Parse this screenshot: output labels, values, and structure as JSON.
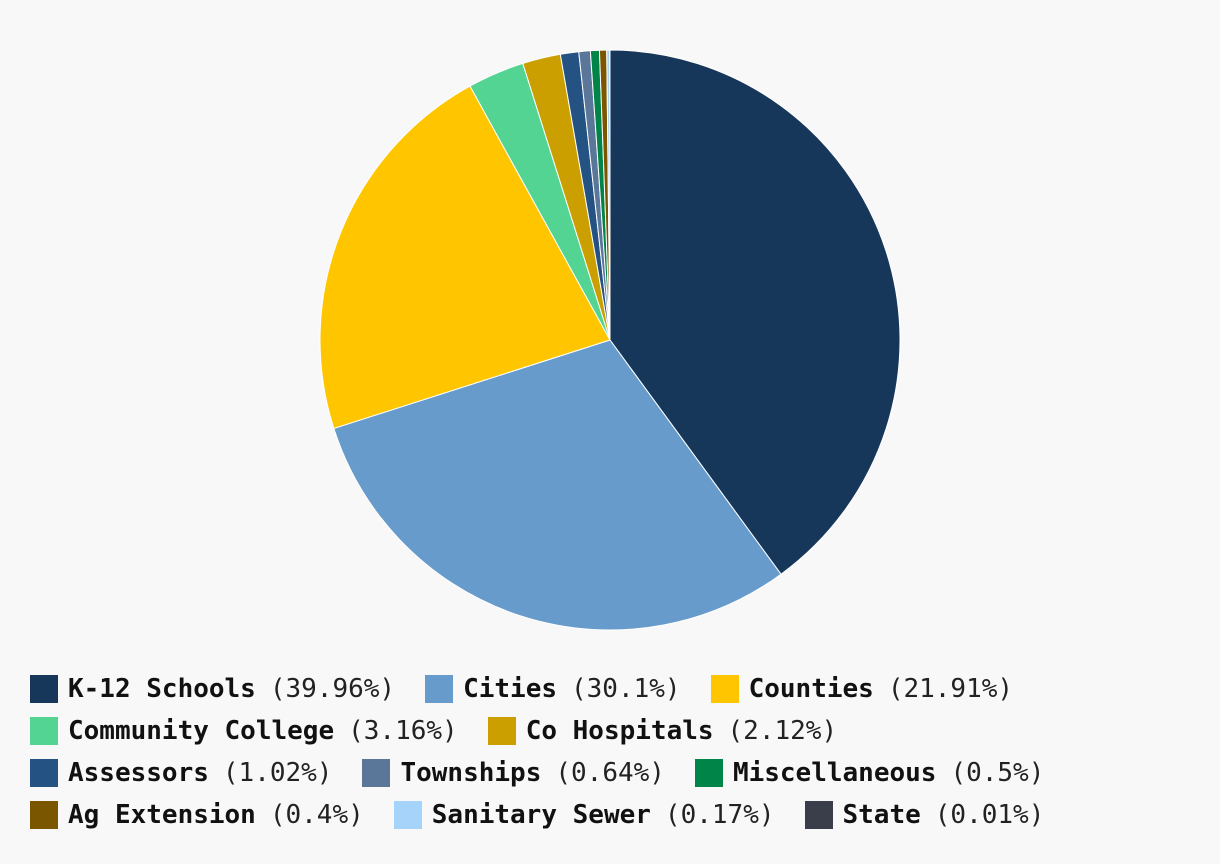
{
  "chart_data": {
    "type": "pie",
    "title": "",
    "legend_position": "bottom",
    "slices": [
      {
        "label": "K-12 Schools",
        "value": 39.96,
        "pct_text": "(39.96%)",
        "color": "#17375a"
      },
      {
        "label": "Cities",
        "value": 30.1,
        "pct_text": "(30.1%)",
        "color": "#669bcc"
      },
      {
        "label": "Counties",
        "value": 21.91,
        "pct_text": "(21.91%)",
        "color": "#ffc600"
      },
      {
        "label": "Community College",
        "value": 3.16,
        "pct_text": "(3.16%)",
        "color": "#53d492"
      },
      {
        "label": "Co Hospitals",
        "value": 2.12,
        "pct_text": "(2.12%)",
        "color": "#cc9f00"
      },
      {
        "label": "Assessors",
        "value": 1.02,
        "pct_text": "(1.02%)",
        "color": "#245282"
      },
      {
        "label": "Townships",
        "value": 0.64,
        "pct_text": "(0.64%)",
        "color": "#5a7699"
      },
      {
        "label": "Miscellaneous",
        "value": 0.5,
        "pct_text": "(0.5%)",
        "color": "#008447"
      },
      {
        "label": "Ag Extension",
        "value": 0.4,
        "pct_text": "(0.4%)",
        "color": "#7b5600"
      },
      {
        "label": "Sanitary Sewer",
        "value": 0.17,
        "pct_text": "(0.17%)",
        "color": "#a5d3fa"
      },
      {
        "label": "State",
        "value": 0.01,
        "pct_text": "(0.01%)",
        "color": "#3a3d4a"
      }
    ],
    "legend_rows": [
      [
        0,
        1,
        2
      ],
      [
        3,
        4
      ],
      [
        5,
        6,
        7
      ],
      [
        8,
        9,
        10
      ]
    ]
  }
}
